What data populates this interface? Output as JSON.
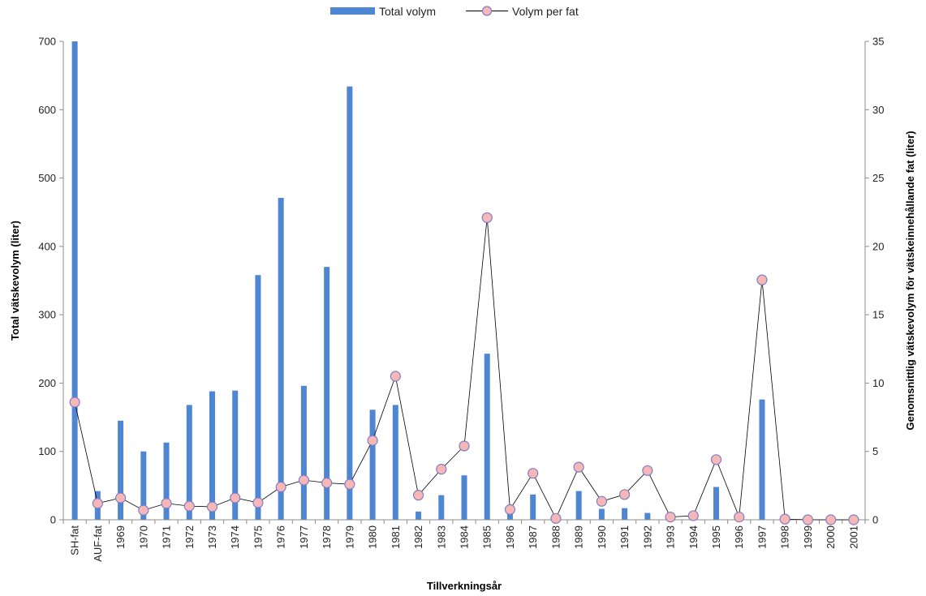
{
  "chart_data": {
    "type": "bar",
    "title": "",
    "xlabel": "Tillverkningsår",
    "ylabel": "Total vätskevolym (liter)",
    "y2label": "Genomsnittlig vätskevolym för vätskeinnehållande fat (liter)",
    "ylim": [
      0,
      700
    ],
    "y2lim": [
      0,
      35
    ],
    "yticks": [
      "0",
      "100",
      "200",
      "300",
      "400",
      "500",
      "600",
      "700"
    ],
    "y2ticks": [
      "0",
      "5",
      "10",
      "15",
      "20",
      "25",
      "30",
      "35"
    ],
    "legend_position": "top-center",
    "grid": false,
    "categories": [
      "SH-fat",
      "AUF-fat",
      "1969",
      "1970",
      "1971",
      "1972",
      "1973",
      "1974",
      "1975",
      "1976",
      "1977",
      "1978",
      "1979",
      "1980",
      "1981",
      "1982",
      "1983",
      "1984",
      "1985",
      "1986",
      "1987",
      "1988",
      "1989",
      "1990",
      "1991",
      "1992",
      "1993",
      "1994",
      "1995",
      "1996",
      "1997",
      "1998",
      "1999",
      "2000",
      "2001"
    ],
    "series": [
      {
        "name": "Total volym",
        "type": "bar",
        "axis": "left",
        "color": "#4F86D4",
        "values": [
          700,
          42,
          145,
          100,
          113,
          168,
          188,
          189,
          358,
          471,
          196,
          370,
          634,
          161,
          168,
          12,
          36,
          65,
          243,
          12,
          37,
          2,
          42,
          16,
          17,
          10,
          3,
          4,
          48,
          3,
          176,
          1,
          0,
          0,
          0
        ]
      },
      {
        "name": "Volym per fat",
        "type": "line",
        "axis": "right",
        "line_color": "#000000",
        "marker_fill": "#F7B7B7",
        "marker_stroke": "#7E7EC8",
        "values": [
          8.6,
          1.2,
          1.6,
          0.7,
          1.2,
          1.0,
          0.95,
          1.6,
          1.25,
          2.4,
          2.9,
          2.7,
          2.6,
          5.8,
          10.5,
          1.8,
          3.7,
          5.4,
          22.1,
          0.75,
          3.4,
          0.1,
          3.85,
          1.35,
          1.85,
          3.6,
          0.2,
          0.3,
          4.4,
          0.2,
          17.55,
          0.05,
          0.0,
          0.0,
          0.0
        ]
      }
    ]
  }
}
